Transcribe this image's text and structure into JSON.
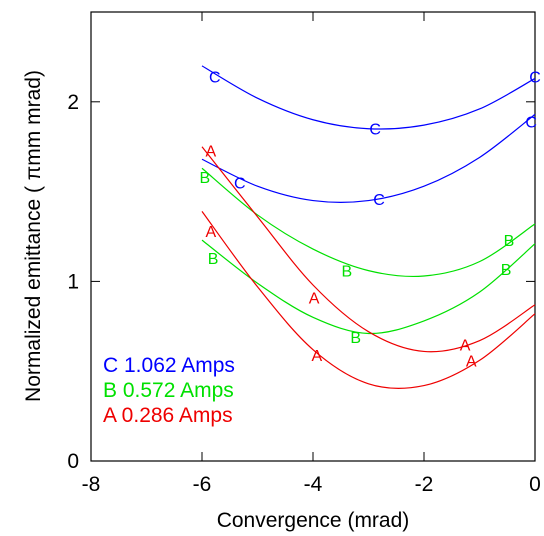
{
  "chart_data": {
    "type": "line",
    "x_label": "Convergence (mrad)",
    "y_label": "Normalized emittance ( πmm mrad)",
    "xlim": [
      -8,
      0
    ],
    "xticks": [
      -8,
      -6,
      -4,
      -2,
      0
    ],
    "ylim": [
      0,
      2.5
    ],
    "yticks": [
      0,
      1,
      2
    ],
    "legend": "lower left",
    "series": [
      {
        "name": "C 1.062 Amps",
        "color": "#0000ff",
        "marker": "C",
        "curves": [
          {
            "x": [
              -6,
              -5,
              -4,
              -3,
              -2,
              -1,
              0
            ],
            "values": [
              2.2,
              2.02,
              1.9,
              1.85,
              1.87,
              1.96,
              2.13
            ]
          },
          {
            "x": [
              -6,
              -5,
              -4,
              -3,
              -2,
              -1,
              0
            ],
            "values": [
              1.68,
              1.53,
              1.45,
              1.45,
              1.53,
              1.69,
              1.93
            ]
          }
        ],
        "points": {
          "x": [
            -5.77,
            -2.88,
            0,
            -5.32,
            -2.81,
            -0.07
          ],
          "values": [
            2.14,
            1.85,
            2.14,
            1.55,
            1.46,
            1.89
          ]
        }
      },
      {
        "name": "B 0.572 Amps",
        "color": "#00e000",
        "marker": "B",
        "curves": [
          {
            "x": [
              -6,
              -5,
              -4,
              -3,
              -2,
              -1,
              0
            ],
            "values": [
              1.63,
              1.37,
              1.18,
              1.06,
              1.03,
              1.11,
              1.32
            ]
          },
          {
            "x": [
              -6,
              -5,
              -4,
              -3,
              -2,
              -1,
              0
            ],
            "values": [
              1.23,
              0.99,
              0.8,
              0.71,
              0.78,
              0.94,
              1.21
            ]
          }
        ],
        "points": {
          "x": [
            -5.95,
            -3.39,
            -0.47,
            -5.8,
            -3.23,
            -0.52
          ],
          "values": [
            1.58,
            1.06,
            1.23,
            1.13,
            0.69,
            1.07
          ]
        }
      },
      {
        "name": "A 0.286 Amps",
        "color": "#ee0000",
        "marker": "A",
        "curves": [
          {
            "x": [
              -6,
              -5,
              -4,
              -3,
              -2,
              -1,
              0
            ],
            "values": [
              1.75,
              1.36,
              0.98,
              0.72,
              0.61,
              0.67,
              0.87
            ]
          },
          {
            "x": [
              -6,
              -5,
              -4,
              -3,
              -2,
              -1,
              0
            ],
            "values": [
              1.39,
              0.97,
              0.62,
              0.43,
              0.42,
              0.56,
              0.82
            ]
          }
        ],
        "points": {
          "x": [
            -5.84,
            -3.98,
            -1.26,
            -5.84,
            -3.93,
            -1.15
          ],
          "values": [
            1.73,
            0.91,
            0.65,
            1.28,
            0.59,
            0.56
          ]
        }
      }
    ]
  }
}
